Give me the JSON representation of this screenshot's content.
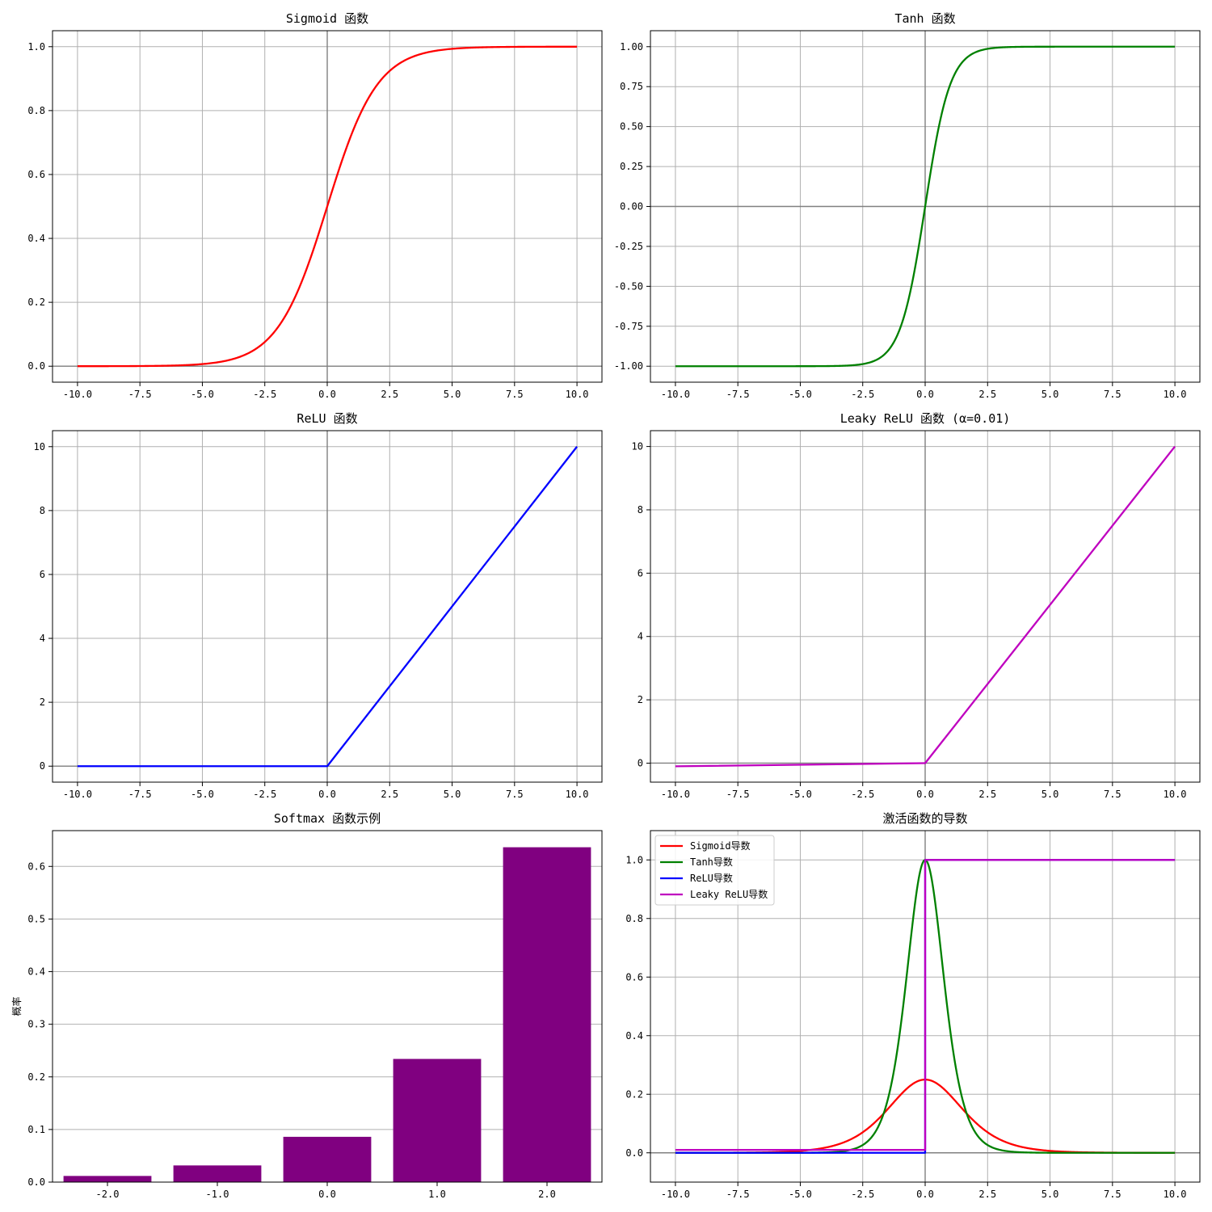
{
  "chart_data": [
    {
      "type": "line",
      "title": "Sigmoid 函数",
      "xlim": [
        -11,
        11
      ],
      "ylim": [
        -0.05,
        1.05
      ],
      "xticks": [
        -10,
        -7.5,
        -5,
        -2.5,
        0,
        2.5,
        5,
        7.5,
        10
      ],
      "xtick_labels": [
        "-10.0",
        "-7.5",
        "-5.0",
        "-2.5",
        "0.0",
        "2.5",
        "5.0",
        "7.5",
        "10.0"
      ],
      "yticks": [
        0,
        0.2,
        0.4,
        0.6,
        0.8,
        1.0
      ],
      "ytick_labels": [
        "0.0",
        "0.2",
        "0.4",
        "0.6",
        "0.8",
        "1.0"
      ],
      "grid": true,
      "ref_lines": {
        "x": 0,
        "y": 0
      },
      "series": [
        {
          "func": "sigmoid",
          "color": "#ff0000",
          "x": [
            -10,
            -8,
            -6,
            -5,
            -4,
            -3,
            -2.5,
            -2,
            -1.5,
            -1,
            -0.5,
            0,
            0.5,
            1,
            1.5,
            2,
            2.5,
            3,
            4,
            5,
            6,
            8,
            10
          ],
          "y": [
            0.0,
            0.0003,
            0.0025,
            0.0067,
            0.018,
            0.0474,
            0.0759,
            0.1192,
            0.1824,
            0.2689,
            0.3775,
            0.5,
            0.6225,
            0.7311,
            0.8176,
            0.8808,
            0.9241,
            0.9526,
            0.982,
            0.9933,
            0.9975,
            0.9997,
            1.0
          ]
        }
      ]
    },
    {
      "type": "line",
      "title": "Tanh 函数",
      "xlim": [
        -11,
        11
      ],
      "ylim": [
        -1.1,
        1.1
      ],
      "xticks": [
        -10,
        -7.5,
        -5,
        -2.5,
        0,
        2.5,
        5,
        7.5,
        10
      ],
      "xtick_labels": [
        "-10.0",
        "-7.5",
        "-5.0",
        "-2.5",
        "0.0",
        "2.5",
        "5.0",
        "7.5",
        "10.0"
      ],
      "yticks": [
        -1,
        -0.75,
        -0.5,
        -0.25,
        0,
        0.25,
        0.5,
        0.75,
        1
      ],
      "ytick_labels": [
        "-1.00",
        "-0.75",
        "-0.50",
        "-0.25",
        "0.00",
        "0.25",
        "0.50",
        "0.75",
        "1.00"
      ],
      "grid": true,
      "ref_lines": {
        "x": 0,
        "y": 0
      },
      "series": [
        {
          "func": "tanh",
          "color": "#008000",
          "x": [
            -10,
            -5,
            -3,
            -2.5,
            -2,
            -1.5,
            -1,
            -0.5,
            0,
            0.5,
            1,
            1.5,
            2,
            2.5,
            3,
            5,
            10
          ],
          "y": [
            -1.0,
            -0.9999,
            -0.9951,
            -0.9866,
            -0.964,
            -0.9051,
            -0.7616,
            -0.4621,
            0,
            0.4621,
            0.7616,
            0.9051,
            0.964,
            0.9866,
            0.9951,
            0.9999,
            1.0
          ]
        }
      ]
    },
    {
      "type": "line",
      "title": "ReLU 函数",
      "xlim": [
        -11,
        11
      ],
      "ylim": [
        -0.5,
        10.5
      ],
      "xticks": [
        -10,
        -7.5,
        -5,
        -2.5,
        0,
        2.5,
        5,
        7.5,
        10
      ],
      "xtick_labels": [
        "-10.0",
        "-7.5",
        "-5.0",
        "-2.5",
        "0.0",
        "2.5",
        "5.0",
        "7.5",
        "10.0"
      ],
      "yticks": [
        0,
        2,
        4,
        6,
        8,
        10
      ],
      "ytick_labels": [
        "0",
        "2",
        "4",
        "6",
        "8",
        "10"
      ],
      "grid": true,
      "ref_lines": {
        "x": 0,
        "y": 0
      },
      "series": [
        {
          "func": "relu",
          "color": "#0000ff",
          "x": [
            -10,
            0,
            10
          ],
          "y": [
            0,
            0,
            10
          ]
        }
      ]
    },
    {
      "type": "line",
      "title": "Leaky ReLU 函数 (α=0.01)",
      "xlim": [
        -11,
        11
      ],
      "ylim": [
        -0.6,
        10.5
      ],
      "xticks": [
        -10,
        -7.5,
        -5,
        -2.5,
        0,
        2.5,
        5,
        7.5,
        10
      ],
      "xtick_labels": [
        "-10.0",
        "-7.5",
        "-5.0",
        "-2.5",
        "0.0",
        "2.5",
        "5.0",
        "7.5",
        "10.0"
      ],
      "yticks": [
        0,
        2,
        4,
        6,
        8,
        10
      ],
      "ytick_labels": [
        "0",
        "2",
        "4",
        "6",
        "8",
        "10"
      ],
      "grid": true,
      "ref_lines": {
        "x": 0,
        "y": 0
      },
      "series": [
        {
          "func": "leaky_relu",
          "color": "#bf00bf",
          "x": [
            -10,
            0,
            10
          ],
          "y": [
            -0.1,
            0,
            10
          ]
        }
      ]
    },
    {
      "type": "bar",
      "title": "Softmax 函数示例",
      "ylabel": "概率",
      "categories": [
        "-2.0",
        "-1.0",
        "0.0",
        "1.0",
        "2.0"
      ],
      "x": [
        -2,
        -1,
        0,
        1,
        2
      ],
      "values": [
        0.0117,
        0.0317,
        0.0861,
        0.2341,
        0.6364
      ],
      "bar_color": "#800080",
      "xlim": [
        -2.5,
        2.5
      ],
      "ylim": [
        0,
        0.668
      ],
      "yticks": [
        0,
        0.1,
        0.2,
        0.3,
        0.4,
        0.5,
        0.6
      ],
      "ytick_labels": [
        "0.0",
        "0.1",
        "0.2",
        "0.3",
        "0.4",
        "0.5",
        "0.6"
      ],
      "grid": "y"
    },
    {
      "type": "line",
      "title": "激活函数的导数",
      "xlim": [
        -11,
        11
      ],
      "ylim": [
        -0.1,
        1.1
      ],
      "xticks": [
        -10,
        -7.5,
        -5,
        -2.5,
        0,
        2.5,
        5,
        7.5,
        10
      ],
      "xtick_labels": [
        "-10.0",
        "-7.5",
        "-5.0",
        "-2.5",
        "0.0",
        "2.5",
        "5.0",
        "7.5",
        "10.0"
      ],
      "yticks": [
        0,
        0.2,
        0.4,
        0.6,
        0.8,
        1.0
      ],
      "ytick_labels": [
        "0.0",
        "0.2",
        "0.4",
        "0.6",
        "0.8",
        "1.0"
      ],
      "grid": true,
      "ref_lines": {
        "x": 0,
        "y": 0
      },
      "legend": "top-left",
      "series": [
        {
          "name": "Sigmoid导数",
          "func": "sigmoid_deriv",
          "color": "#ff0000",
          "x": [
            -10,
            -5,
            -3,
            -2,
            -1,
            0,
            1,
            2,
            3,
            5,
            10
          ],
          "y": [
            0.0,
            0.0066,
            0.0452,
            0.105,
            0.1966,
            0.25,
            0.1966,
            0.105,
            0.0452,
            0.0066,
            0.0
          ]
        },
        {
          "name": "Tanh导数",
          "func": "tanh_deriv",
          "color": "#008000",
          "x": [
            -10,
            -3,
            -2,
            -1.5,
            -1,
            -0.5,
            0,
            0.5,
            1,
            1.5,
            2,
            3,
            10
          ],
          "y": [
            0.0,
            0.0099,
            0.0707,
            0.1807,
            0.42,
            0.7864,
            1.0,
            0.7864,
            0.42,
            0.1807,
            0.0707,
            0.0099,
            0.0
          ]
        },
        {
          "name": "ReLU导数",
          "func": "relu_deriv",
          "color": "#0000ff",
          "x": [
            -10,
            0,
            0,
            10
          ],
          "y": [
            0,
            0,
            1,
            1
          ]
        },
        {
          "name": "Leaky ReLU导数",
          "func": "leaky_relu_deriv",
          "color": "#bf00bf",
          "x": [
            -10,
            0,
            0,
            10
          ],
          "y": [
            0.01,
            0.01,
            1,
            1
          ]
        }
      ]
    }
  ]
}
